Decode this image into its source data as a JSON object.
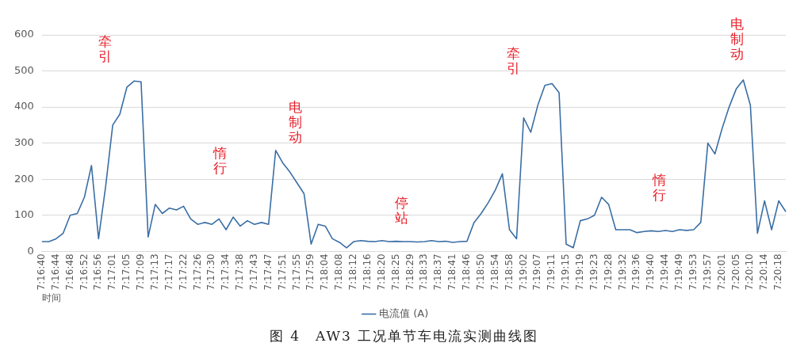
{
  "chart_data": {
    "type": "line",
    "xlabel": "时间",
    "categories": [
      "7:16:40",
      null,
      "7:16:44",
      null,
      "7:16:48",
      null,
      "7:16:52",
      null,
      "7:16:56",
      null,
      "7:17:01",
      null,
      "7:17:05",
      null,
      "7:17:09",
      null,
      "7:17:13",
      null,
      "7:17:17",
      null,
      "7:17:22",
      null,
      "7:17:26",
      null,
      "7:17:30",
      null,
      "7:17:34",
      null,
      "7:17:38",
      null,
      "7:17:43",
      null,
      "7:17:47",
      null,
      "7:17:51",
      null,
      "7:17:55",
      null,
      "7:17:59",
      null,
      "7:18:04",
      null,
      "7:18:08",
      null,
      "7:18:12",
      null,
      "7:18:16",
      null,
      "7:18:20",
      null,
      "7:18:25",
      null,
      "7:18:29",
      null,
      "7:18:33",
      null,
      "7:18:37",
      null,
      "7:18:41",
      null,
      "7:18:46",
      null,
      "7:18:50",
      null,
      "7:18:54",
      null,
      "7:18:58",
      null,
      "7:19:02",
      null,
      "7:19:07",
      null,
      "7:19:11",
      null,
      "7:19:15",
      null,
      "7:19:19",
      null,
      "7:19:23",
      null,
      "7:19:28",
      null,
      "7:19:32",
      null,
      "7:19:36",
      null,
      "7:19:40",
      null,
      "7:19:44",
      null,
      "7:19:49",
      null,
      "7:19:53",
      null,
      "7:19:57",
      null,
      "7:20:01",
      null,
      "7:20:05",
      null,
      "7:20:10",
      null,
      "7:20:14",
      null,
      "7:20:18",
      null
    ],
    "series": [
      {
        "name": "电流值 (A)",
        "color": "#3a6ea5",
        "values": [
          27,
          27,
          35,
          50,
          100,
          105,
          150,
          238,
          35,
          180,
          350,
          380,
          455,
          472,
          470,
          40,
          130,
          105,
          120,
          115,
          125,
          90,
          75,
          80,
          75,
          90,
          60,
          95,
          70,
          85,
          75,
          80,
          75,
          280,
          245,
          220,
          190,
          160,
          20,
          75,
          70,
          35,
          25,
          10,
          27,
          30,
          28,
          27,
          30,
          27,
          28,
          27,
          27,
          26,
          27,
          30,
          27,
          28,
          25,
          27,
          28,
          80,
          105,
          135,
          170,
          215,
          60,
          35,
          370,
          330,
          405,
          460,
          465,
          440,
          20,
          10,
          85,
          90,
          100,
          150,
          130,
          60,
          60,
          60,
          52,
          55,
          57,
          55,
          58,
          55,
          60,
          58,
          60,
          80,
          300,
          270,
          340,
          400,
          450,
          475,
          405,
          50,
          140,
          60,
          140,
          110
        ]
      }
    ],
    "ylim": [
      0,
      600
    ],
    "yticks": [
      0,
      100,
      200,
      300,
      400,
      500,
      600
    ],
    "grid": "y",
    "legend": "bottom",
    "marker": "none",
    "line_style": "solid",
    "annotations": [
      "牵引",
      "惰行",
      "电制动",
      "停站",
      "牵引",
      "惰行",
      "电制动",
      "图 4　AW3 工况单节车电流实测曲线图"
    ]
  }
}
